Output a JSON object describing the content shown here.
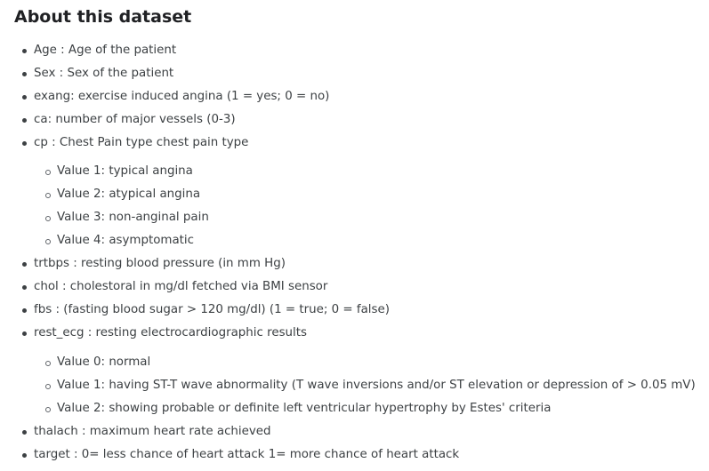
{
  "section": {
    "title": "About this dataset"
  },
  "items": [
    {
      "level": 1,
      "text": "Age : Age of the patient"
    },
    {
      "level": 1,
      "text": "Sex : Sex of the patient"
    },
    {
      "level": 1,
      "text": "exang: exercise induced angina (1 = yes; 0 = no)"
    },
    {
      "level": 1,
      "text": "ca: number of major vessels (0-3)"
    },
    {
      "level": 1,
      "text": "cp : Chest Pain type chest pain type"
    },
    {
      "level": 2,
      "text": "Value 1: typical angina"
    },
    {
      "level": 2,
      "text": "Value 2: atypical angina"
    },
    {
      "level": 2,
      "text": "Value 3: non-anginal pain"
    },
    {
      "level": 2,
      "text": "Value 4: asymptomatic"
    },
    {
      "level": 1,
      "text": "trtbps : resting blood pressure (in mm Hg)"
    },
    {
      "level": 1,
      "text": "chol : cholestoral in mg/dl fetched via BMI sensor"
    },
    {
      "level": 1,
      "text": "fbs : (fasting blood sugar > 120 mg/dl) (1 = true; 0 = false)"
    },
    {
      "level": 1,
      "text": "rest_ecg : resting electrocardiographic results"
    },
    {
      "level": 2,
      "text": "Value 0: normal"
    },
    {
      "level": 2,
      "text": "Value 1: having ST-T wave abnormality (T wave inversions and/or ST elevation or depression of > 0.05 mV)"
    },
    {
      "level": 2,
      "text": "Value 2: showing probable or definite left ventricular hypertrophy by Estes' criteria"
    },
    {
      "level": 1,
      "text": "thalach : maximum heart rate achieved"
    },
    {
      "level": 1,
      "text": "target : 0= less chance of heart attack 1= more chance of heart attack"
    }
  ]
}
